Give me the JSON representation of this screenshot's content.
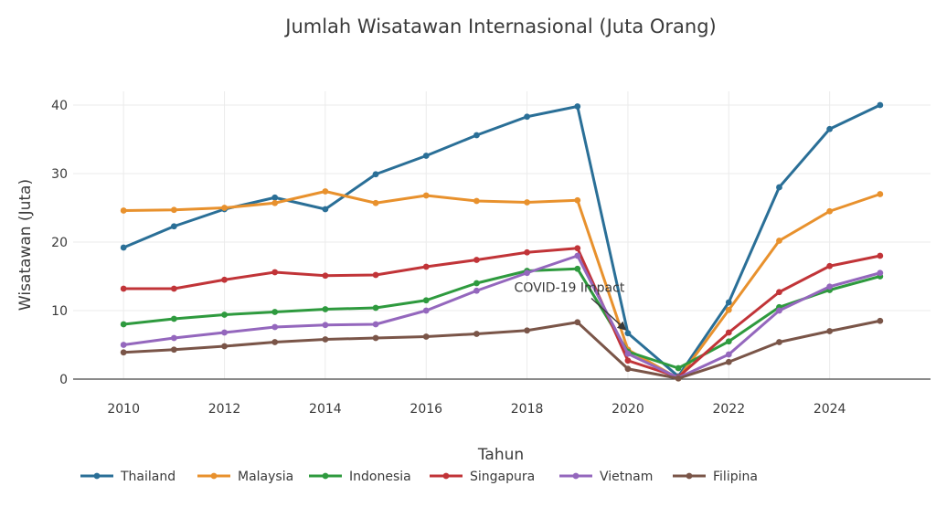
{
  "chart_data": {
    "type": "line",
    "title": "Jumlah Wisatawan Internasional (Juta Orang)",
    "xlabel": "Tahun",
    "ylabel": "Wisatawan (Juta)",
    "x": [
      2010,
      2011,
      2012,
      2013,
      2014,
      2015,
      2016,
      2017,
      2018,
      2019,
      2020,
      2021,
      2022,
      2023,
      2024,
      2025
    ],
    "xlim": [
      2009,
      2026
    ],
    "ylim": [
      0,
      42
    ],
    "x_ticks": [
      "2010",
      "2012",
      "2014",
      "2016",
      "2018",
      "2020",
      "2022",
      "2024"
    ],
    "y_ticks": [
      "0",
      "10",
      "20",
      "30",
      "40"
    ],
    "grid": true,
    "legend_position": "bottom",
    "series": [
      {
        "name": "Thailand",
        "color": "#2a6f97",
        "values": [
          19.2,
          22.3,
          24.8,
          26.5,
          24.8,
          29.9,
          32.6,
          35.6,
          38.3,
          39.8,
          6.7,
          0.4,
          11.2,
          28.0,
          36.5,
          40.0
        ]
      },
      {
        "name": "Malaysia",
        "color": "#e8912d",
        "values": [
          24.6,
          24.7,
          25.0,
          25.7,
          27.4,
          25.7,
          26.8,
          26.0,
          25.8,
          26.1,
          4.3,
          0.1,
          10.1,
          20.2,
          24.5,
          27.0
        ]
      },
      {
        "name": "Indonesia",
        "color": "#2e9a3e",
        "values": [
          8.0,
          8.8,
          9.4,
          9.8,
          10.2,
          10.4,
          11.5,
          14.0,
          15.8,
          16.1,
          4.0,
          1.6,
          5.5,
          10.5,
          13.0,
          15.0
        ]
      },
      {
        "name": "Singapura",
        "color": "#c13438",
        "values": [
          13.2,
          13.2,
          14.5,
          15.6,
          15.1,
          15.2,
          16.4,
          17.4,
          18.5,
          19.1,
          2.7,
          0.3,
          6.8,
          12.7,
          16.5,
          18.0
        ]
      },
      {
        "name": "Vietnam",
        "color": "#9467bd",
        "values": [
          5.0,
          6.0,
          6.8,
          7.6,
          7.9,
          8.0,
          10.0,
          12.9,
          15.5,
          18.0,
          3.7,
          0.2,
          3.6,
          10.0,
          13.5,
          15.5
        ]
      },
      {
        "name": "Filipina",
        "color": "#7a5548",
        "values": [
          3.9,
          4.3,
          4.8,
          5.4,
          5.8,
          6.0,
          6.2,
          6.6,
          7.1,
          8.3,
          1.5,
          0.1,
          2.5,
          5.4,
          7.0,
          8.5
        ]
      }
    ],
    "annotations": [
      {
        "text": "COVID-19 Impact",
        "x": 2020,
        "y": 7.0
      }
    ]
  }
}
